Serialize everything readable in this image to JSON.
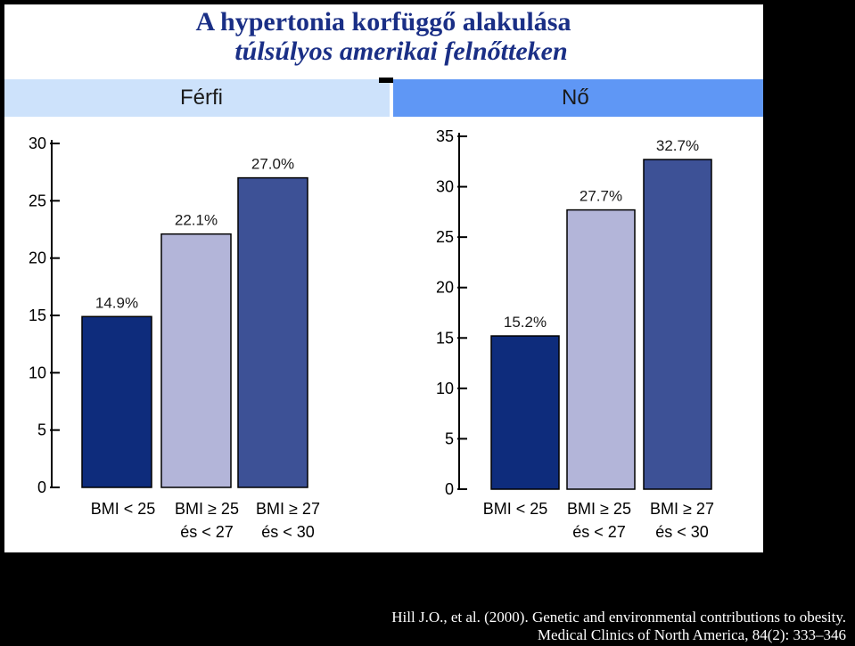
{
  "title": {
    "line1": "A hypertonia korfüggő alakulása",
    "line2": "túlsúlyos amerikai felnőtteken"
  },
  "colors": {
    "bar1": "#0e2c7c",
    "bar2": "#b3b5d9",
    "bar3": "#3d5196",
    "header_ferfi_bg": "#cde2fb",
    "header_no_bg": "#5f97f5",
    "title": "#1a2f86"
  },
  "chart_data": [
    {
      "type": "bar",
      "panel": "Férfi",
      "categories": [
        "BMI < 25",
        "BMI ≥ 25 és < 27",
        "BMI ≥ 27 és < 30"
      ],
      "category_lines": [
        [
          "BMI < 25",
          ""
        ],
        [
          "BMI ≥ 25",
          "és < 27"
        ],
        [
          "BMI ≥ 27",
          "és < 30"
        ]
      ],
      "values": [
        14.9,
        22.1,
        27.0
      ],
      "data_labels": [
        "14.9%",
        "22.1%",
        "27.0%"
      ],
      "yticks": [
        "0",
        "5",
        "10",
        "15",
        "20",
        "25",
        "30"
      ],
      "ylim": [
        0,
        30
      ],
      "grid": false
    },
    {
      "type": "bar",
      "panel": "Nő",
      "categories": [
        "BMI < 25",
        "BMI ≥ 25 és < 27",
        "BMI ≥ 27 és < 30"
      ],
      "category_lines": [
        [
          "BMI < 25",
          ""
        ],
        [
          "BMI ≥ 25",
          "és < 27"
        ],
        [
          "BMI ≥ 27",
          "és < 30"
        ]
      ],
      "values": [
        15.2,
        27.7,
        32.7
      ],
      "data_labels": [
        "15.2%",
        "27.7%",
        "32.7%"
      ],
      "yticks": [
        "0",
        "5",
        "10",
        "15",
        "20",
        "25",
        "30",
        "35"
      ],
      "ylim": [
        0,
        35
      ],
      "grid": false
    }
  ],
  "citation": {
    "line1": "Hill J.O., et al. (2000). Genetic and environmental contributions to obesity.",
    "line2": "Medical Clinics of North America, 84(2): 333–346"
  }
}
